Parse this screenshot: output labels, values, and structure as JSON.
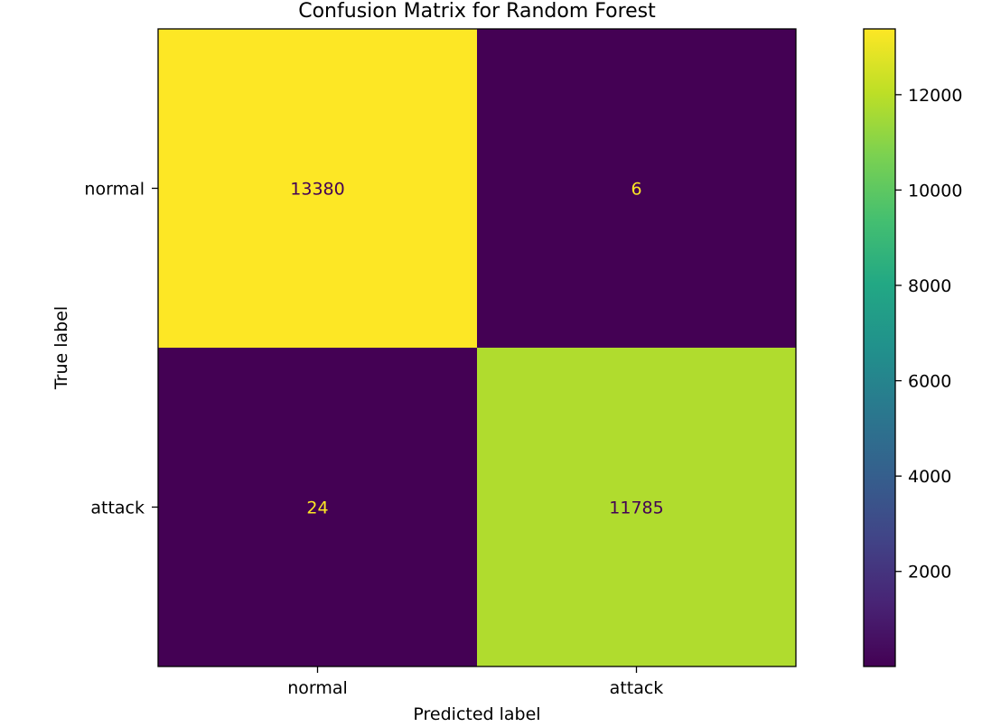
{
  "chart_data": {
    "type": "heatmap",
    "title": "Confusion Matrix for Random Forest",
    "xlabel": "Predicted label",
    "ylabel": "True label",
    "x_categories": [
      "normal",
      "attack"
    ],
    "y_categories": [
      "normal",
      "attack"
    ],
    "values": [
      [
        13380,
        6
      ],
      [
        24,
        11785
      ]
    ],
    "colormap": "viridis",
    "colorbar": {
      "ticks": [
        2000,
        4000,
        6000,
        8000,
        10000,
        12000
      ],
      "range": [
        6,
        13380
      ]
    },
    "grid": false,
    "colors": {
      "text_on_dark": "#fde725",
      "text_on_light": "#440154"
    }
  }
}
